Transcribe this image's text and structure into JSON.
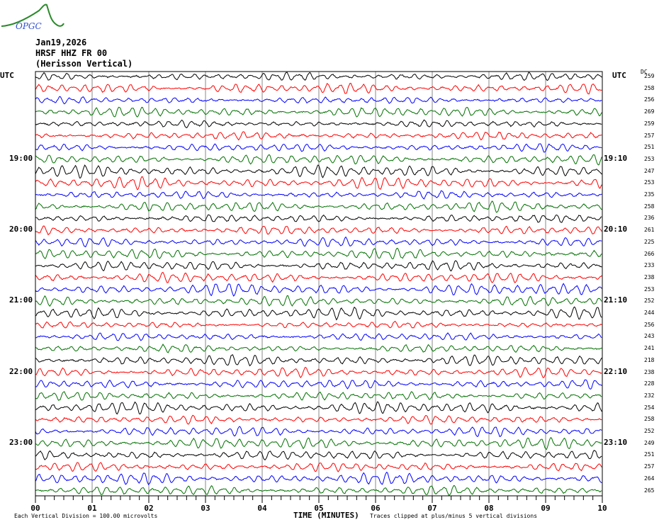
{
  "logo_text": "OPGC",
  "header": {
    "date": "Jan19,2026",
    "station": "HRSF HHZ FR 00",
    "name": "(Herisson Vertical)"
  },
  "left_axis_title": "UTC",
  "right_axis_title": "UTC",
  "dc_title": "DC",
  "footer": {
    "scale": "Each Vertical Division =  100.00 microvolts",
    "xlabel": "TIME (MINUTES)",
    "clip_note": "Traces clipped at plus/minus 5 vertical divisions"
  },
  "chart_data": {
    "type": "line",
    "title": "",
    "xlabel": "TIME (MINUTES)",
    "x_ticks": [
      "00",
      "01",
      "02",
      "03",
      "04",
      "05",
      "06",
      "07",
      "08",
      "09",
      "10"
    ],
    "xlim": [
      0,
      10
    ],
    "trace_minutes": 10,
    "trace_count": 36,
    "trace_colors": [
      "#000000",
      "#ff0000",
      "#0000ff",
      "#007000"
    ],
    "left_time_labels": [
      {
        "trace": 7,
        "label": "19:00"
      },
      {
        "trace": 13,
        "label": "20:00"
      },
      {
        "trace": 19,
        "label": "21:00"
      },
      {
        "trace": 25,
        "label": "22:00"
      },
      {
        "trace": 31,
        "label": "23:00"
      }
    ],
    "right_time_labels": [
      {
        "trace": 7,
        "label": "19:10"
      },
      {
        "trace": 13,
        "label": "20:10"
      },
      {
        "trace": 19,
        "label": "21:10"
      },
      {
        "trace": 25,
        "label": "22:10"
      },
      {
        "trace": 31,
        "label": "23:10"
      }
    ],
    "dc_offsets": [
      259,
      258,
      256,
      269,
      259,
      257,
      251,
      253,
      247,
      253,
      235,
      258,
      236,
      261,
      225,
      266,
      233,
      238,
      253,
      252,
      244,
      256,
      243,
      241,
      218,
      238,
      228,
      232,
      254,
      258,
      252,
      249,
      251,
      257,
      264,
      265
    ],
    "grid": true
  }
}
